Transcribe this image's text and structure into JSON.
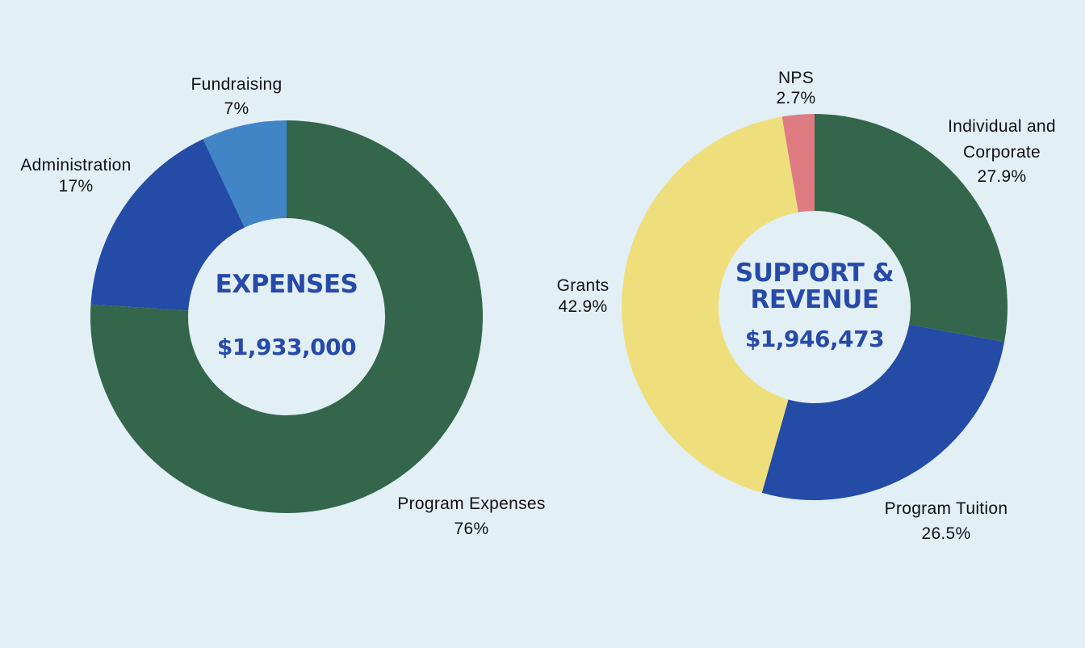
{
  "colors": {
    "background": "#e2eff5",
    "green": "#33664b",
    "blue": "#244ba6",
    "light_blue": "#4185c7",
    "yellow": "#efdf7c",
    "pink": "#df7b83",
    "center_text": "#274aa8",
    "label_text": "#111111"
  },
  "chart_data": [
    {
      "type": "pie",
      "variant": "donut",
      "title": "EXPENSES",
      "total": "$1,933,000",
      "slices": [
        {
          "label": "Program Expenses",
          "percent_text": "76%",
          "value": 76,
          "color": "#33664b"
        },
        {
          "label": "Administration",
          "percent_text": "17%",
          "value": 17,
          "color": "#244ba6"
        },
        {
          "label": "Fundraising",
          "percent_text": "7%",
          "value": 7,
          "color": "#4185c7"
        }
      ]
    },
    {
      "type": "pie",
      "variant": "donut",
      "title_lines": [
        "SUPPORT &",
        "REVENUE"
      ],
      "total": "$1,946,473",
      "slices": [
        {
          "label_lines": [
            "Individual and",
            "Corporate"
          ],
          "percent_text": "27.9%",
          "value": 27.9,
          "color": "#33664b"
        },
        {
          "label_lines": [
            "Program Tuition"
          ],
          "percent_text": "26.5%",
          "value": 26.5,
          "color": "#244ba6"
        },
        {
          "label_lines": [
            "Grants"
          ],
          "percent_text": "42.9%",
          "value": 42.9,
          "color": "#efdf7c"
        },
        {
          "label_lines": [
            "NPS"
          ],
          "percent_text": "2.7%",
          "value": 2.7,
          "color": "#df7b83"
        }
      ]
    }
  ]
}
